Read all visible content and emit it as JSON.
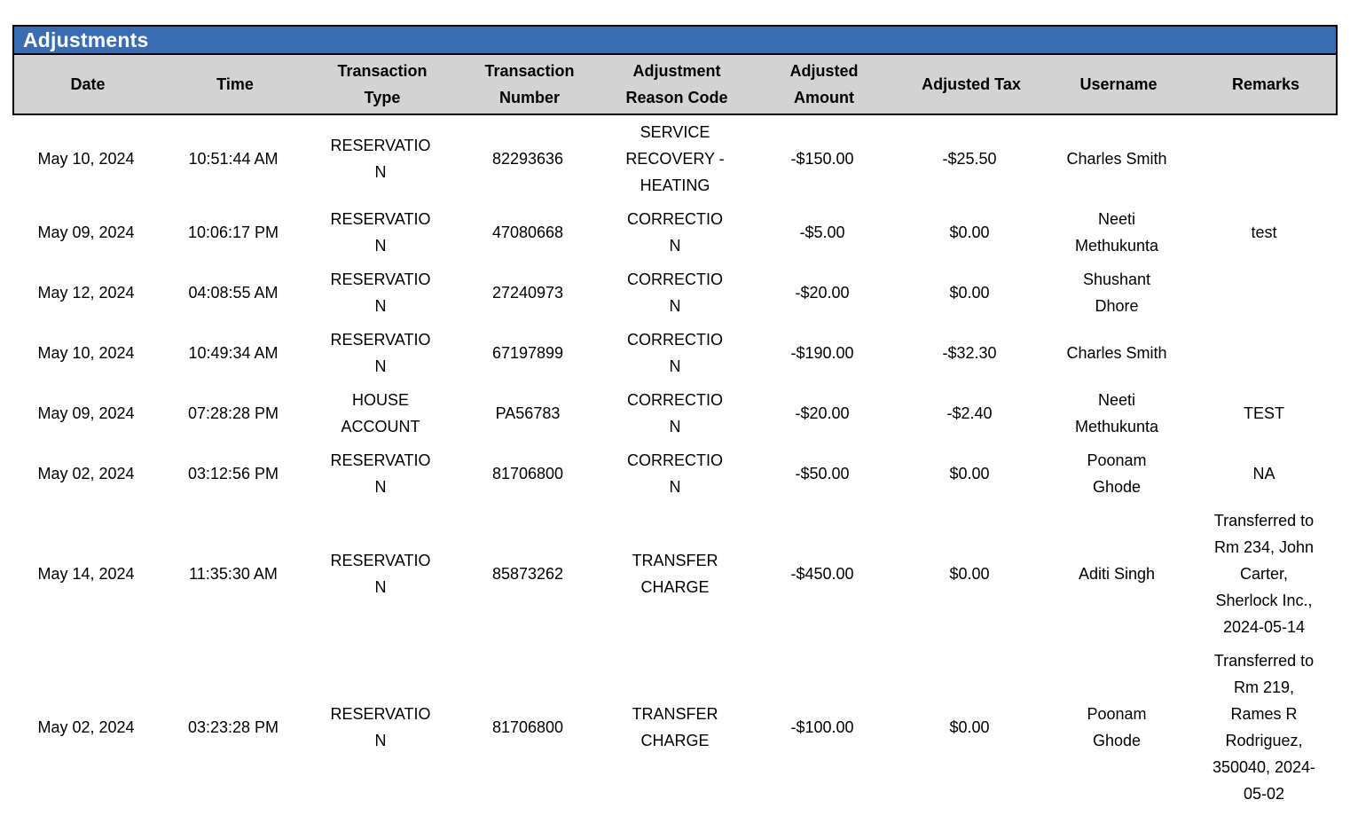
{
  "title": "Adjustments",
  "columns": [
    {
      "id": "date",
      "label": "Date"
    },
    {
      "id": "time",
      "label": "Time"
    },
    {
      "id": "transaction_type",
      "label": "Transaction Type"
    },
    {
      "id": "transaction_number",
      "label": "Transaction Number"
    },
    {
      "id": "adjustment_reason_code",
      "label": "Adjustment Reason Code"
    },
    {
      "id": "adjusted_amount",
      "label": "Adjusted Amount"
    },
    {
      "id": "adjusted_tax",
      "label": "Adjusted Tax"
    },
    {
      "id": "username",
      "label": "Username"
    },
    {
      "id": "remarks",
      "label": "Remarks"
    }
  ],
  "rows": [
    {
      "date": "May 10, 2024",
      "time": "10:51:44 AM",
      "transaction_type": "RESERVATION",
      "transaction_number": "82293636",
      "adjustment_reason_code": "SERVICE RECOVERY - HEATING",
      "adjusted_amount": "-$150.00",
      "adjusted_tax": "-$25.50",
      "username": "Charles Smith",
      "remarks": ""
    },
    {
      "date": "May 09, 2024",
      "time": "10:06:17 PM",
      "transaction_type": "RESERVATION",
      "transaction_number": "47080668",
      "adjustment_reason_code": "CORRECTION",
      "adjusted_amount": "-$5.00",
      "adjusted_tax": "$0.00",
      "username": "Neeti Methukunta",
      "remarks": "test"
    },
    {
      "date": "May 12, 2024",
      "time": "04:08:55 AM",
      "transaction_type": "RESERVATION",
      "transaction_number": "27240973",
      "adjustment_reason_code": "CORRECTION",
      "adjusted_amount": "-$20.00",
      "adjusted_tax": "$0.00",
      "username": "Shushant Dhore",
      "remarks": ""
    },
    {
      "date": "May 10, 2024",
      "time": "10:49:34 AM",
      "transaction_type": "RESERVATION",
      "transaction_number": "67197899",
      "adjustment_reason_code": "CORRECTION",
      "adjusted_amount": "-$190.00",
      "adjusted_tax": "-$32.30",
      "username": "Charles Smith",
      "remarks": ""
    },
    {
      "date": "May 09, 2024",
      "time": "07:28:28 PM",
      "transaction_type": "HOUSE ACCOUNT",
      "transaction_number": "PA56783",
      "adjustment_reason_code": "CORRECTION",
      "adjusted_amount": "-$20.00",
      "adjusted_tax": "-$2.40",
      "username": "Neeti Methukunta",
      "remarks": "TEST"
    },
    {
      "date": "May 02, 2024",
      "time": "03:12:56 PM",
      "transaction_type": "RESERVATION",
      "transaction_number": "81706800",
      "adjustment_reason_code": "CORRECTION",
      "adjusted_amount": "-$50.00",
      "adjusted_tax": "$0.00",
      "username": "Poonam Ghode",
      "remarks": "NA"
    },
    {
      "date": "May 14, 2024",
      "time": "11:35:30 AM",
      "transaction_type": "RESERVATION",
      "transaction_number": "85873262",
      "adjustment_reason_code": "TRANSFER CHARGE",
      "adjusted_amount": "-$450.00",
      "adjusted_tax": "$0.00",
      "username": "Aditi Singh",
      "remarks": "Transferred to Rm 234, John Carter, Sherlock Inc., 2024-05-14"
    },
    {
      "date": "May 02, 2024",
      "time": "03:23:28 PM",
      "transaction_type": "RESERVATION",
      "transaction_number": "81706800",
      "adjustment_reason_code": "TRANSFER CHARGE",
      "adjusted_amount": "-$100.00",
      "adjusted_tax": "$0.00",
      "username": "Poonam Ghode",
      "remarks": "Transferred to Rm 219, Rames R Rodriguez, 350040, 2024-05-02"
    }
  ],
  "colors": {
    "title_bar_bg": "#3A6CB4",
    "title_text": "#FFFFFF",
    "header_bg": "#D3D3D3",
    "border": "#000000",
    "body_text": "#000000"
  }
}
